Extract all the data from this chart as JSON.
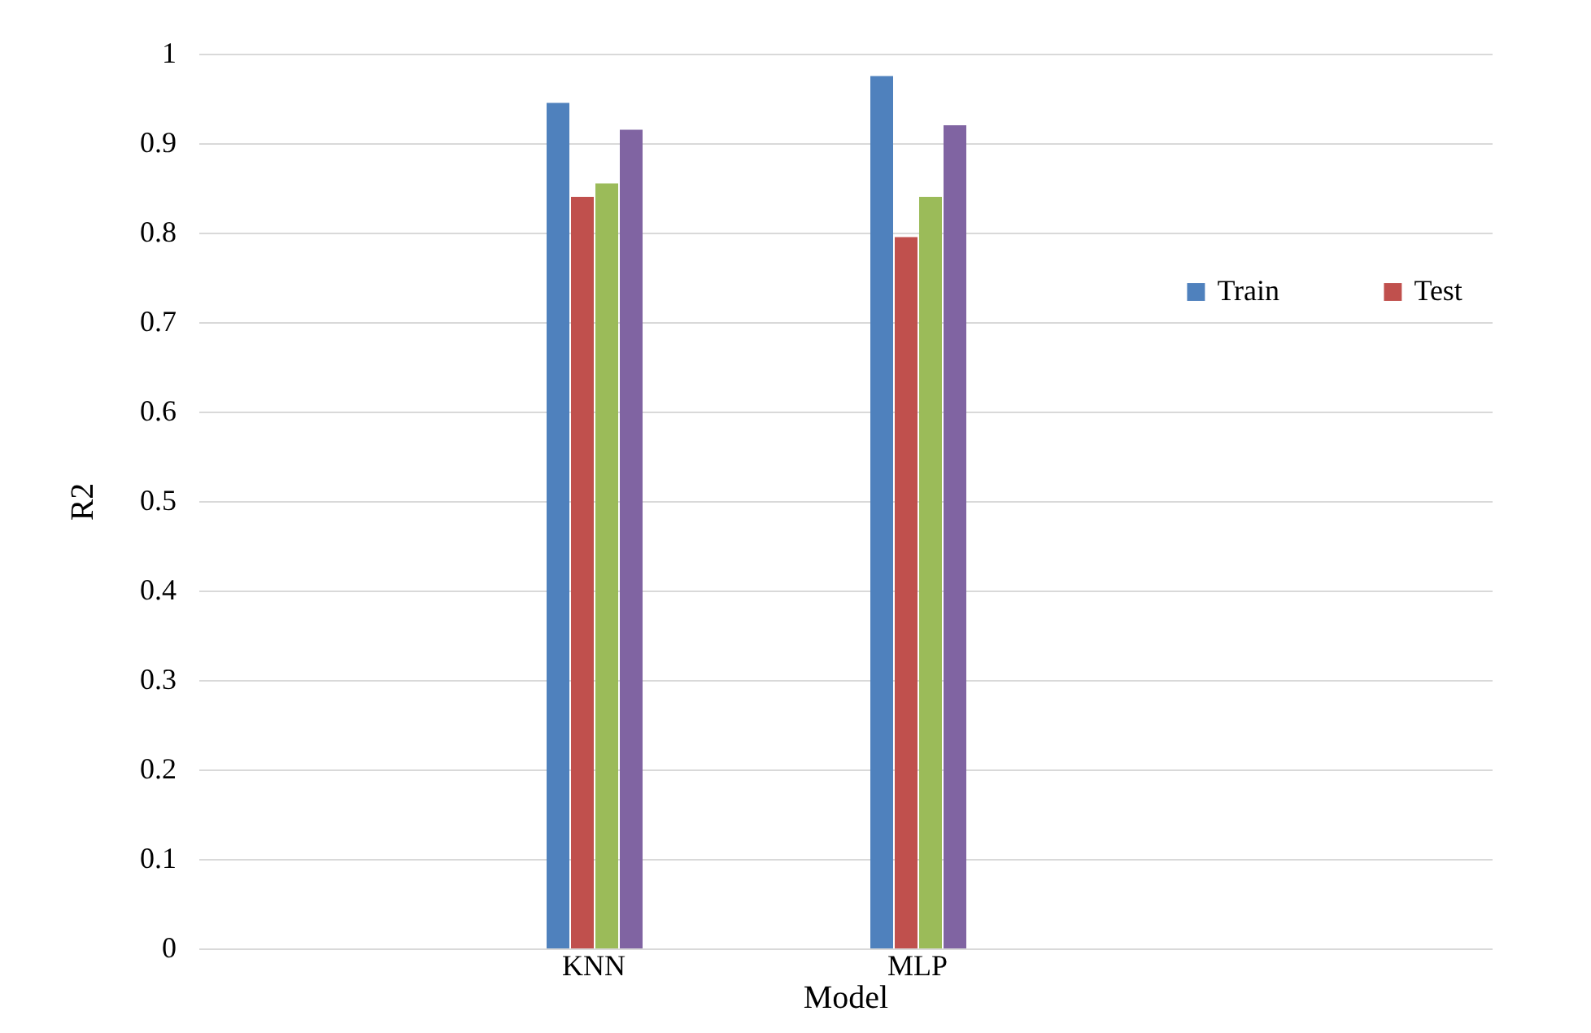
{
  "chart_data": {
    "type": "bar",
    "xlabel": "Model",
    "ylabel": "R2",
    "categories": [
      "KNN",
      "MLP"
    ],
    "series": [
      {
        "name": "Train",
        "color": "#4f81bd",
        "values": [
          0.945,
          0.975
        ]
      },
      {
        "name": "Test",
        "color": "#c0504d",
        "values": [
          0.84,
          0.795
        ]
      },
      {
        "color": "#9bbb59",
        "values": [
          0.855,
          0.84
        ]
      },
      {
        "color": "#8064a2",
        "values": [
          0.915,
          0.92
        ]
      }
    ],
    "ylim": [
      0,
      1
    ],
    "yticks": [
      0,
      0.1,
      0.2,
      0.3,
      0.4,
      0.5,
      0.6,
      0.7,
      0.8,
      0.9,
      1
    ],
    "grid": "y",
    "legend": "right"
  }
}
